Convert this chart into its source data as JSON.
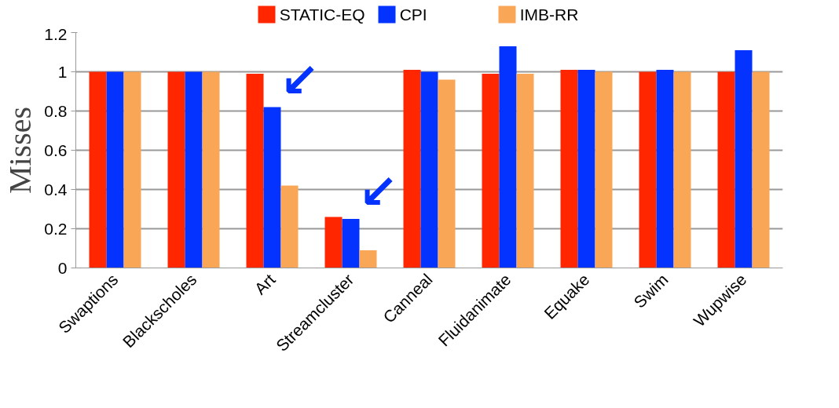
{
  "chart_data": {
    "type": "bar",
    "ylabel": "Misses",
    "categories": [
      "Swaptions",
      "Blackscholes",
      "Art",
      "Streamcluster",
      "Canneal",
      "Fluidanimate",
      "Equake",
      "Swim",
      "Wupwise"
    ],
    "series": [
      {
        "name": "STATIC-EQ",
        "color": "#ff2600",
        "values": [
          1,
          1,
          0.99,
          0.26,
          1.01,
          0.99,
          1.01,
          1,
          1
        ]
      },
      {
        "name": "CPI",
        "color": "#0433ff",
        "values": [
          1,
          1,
          0.82,
          0.25,
          1,
          1.13,
          1.01,
          1.01,
          1.11
        ]
      },
      {
        "name": "IMB-RR",
        "color": "#f9a656",
        "values": [
          1,
          1,
          0.42,
          0.09,
          0.96,
          0.99,
          1,
          1,
          1
        ]
      }
    ],
    "ylim": [
      0,
      1.2
    ],
    "yticks": [
      0,
      {
        "value": 0.2,
        "label": "0.2"
      },
      {
        "value": 0.4,
        "label": "0.4"
      },
      {
        "value": 0.6,
        "label": "0.6"
      },
      {
        "value": 0.8,
        "label": "0.8"
      },
      1,
      {
        "value": 1.2,
        "label": "1.2"
      }
    ],
    "annotations": [
      {
        "text": "↙",
        "x": "Art",
        "y": 0.82
      },
      {
        "text": "↙",
        "x": "Streamcluster",
        "y": 0.25
      }
    ],
    "grid": "y",
    "legend": "top"
  }
}
